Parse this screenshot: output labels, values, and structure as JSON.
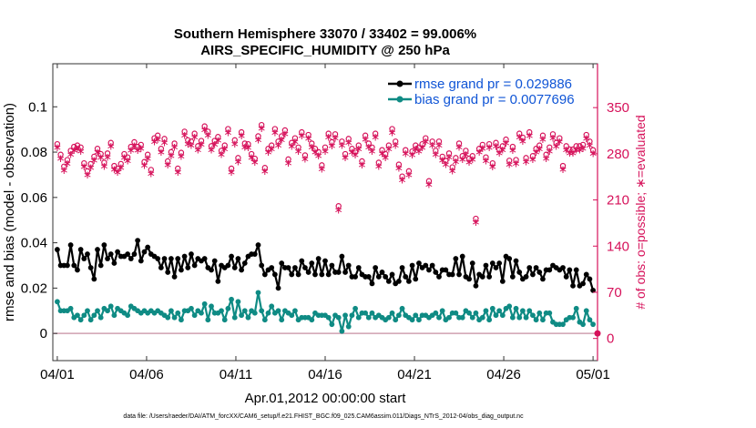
{
  "colors": {
    "rmse": "#000000",
    "bias": "#0f8b84",
    "obs": "#d6115a",
    "zero_line": "#cfa0b0",
    "legend_text": "#1055d6"
  },
  "chart_data": {
    "type": "line",
    "title_line1": "Southern Hemisphere 33070 / 33402 = 99.006%",
    "title_line2": "AIRS_SPECIFIC_HUMIDITY @ 250 hPa",
    "xlabel": "Apr.01,2012 00:00:00 start",
    "ylabel": "rmse and bias (model - observation)",
    "y2label": "# of obs: o=possible; ∗=evaluated",
    "footer": "data file: /Users/raeder/DAI/ATM_forcXX/CAM6_setup/f.e21.FHIST_BGC.f09_025.CAM6assim.011/Diags_NTrS_2012-04/obs_diag_output.nc",
    "x_ticks": [
      {
        "day": 0,
        "label": "04/01"
      },
      {
        "day": 5,
        "label": "04/06"
      },
      {
        "day": 10,
        "label": "04/11"
      },
      {
        "day": 15,
        "label": "04/16"
      },
      {
        "day": 20,
        "label": "04/21"
      },
      {
        "day": 25,
        "label": "04/26"
      },
      {
        "day": 30,
        "label": "05/01"
      }
    ],
    "xlim": [
      -0.25,
      30.25
    ],
    "ylim": [
      -0.012,
      0.119
    ],
    "y_ticks": [
      {
        "value": 0,
        "label": "0"
      },
      {
        "value": 0.02,
        "label": "0.02"
      },
      {
        "value": 0.04,
        "label": "0.04"
      },
      {
        "value": 0.06,
        "label": "0.06"
      },
      {
        "value": 0.08,
        "label": "0.08"
      },
      {
        "value": 0.1,
        "label": "0.1"
      }
    ],
    "y2lim": [
      -33.6,
      416.5
    ],
    "y2_ticks": [
      {
        "value": 0,
        "label": "0"
      },
      {
        "value": 70,
        "label": "70"
      },
      {
        "value": 140,
        "label": "140"
      },
      {
        "value": 210,
        "label": "210"
      },
      {
        "value": 280,
        "label": "280"
      },
      {
        "value": 350,
        "label": "350"
      }
    ],
    "grid": false,
    "legend_position": "top-right",
    "series": [
      {
        "name": "rmse grand pr = 0.029886",
        "axis": "left",
        "values": [
          0.037,
          0.03,
          0.03,
          0.03,
          0.039,
          0.03,
          0.028,
          0.037,
          0.033,
          0.035,
          0.029,
          0.024,
          0.037,
          0.03,
          0.039,
          0.033,
          0.035,
          0.031,
          0.036,
          0.034,
          0.034,
          0.035,
          0.033,
          0.035,
          0.041,
          0.032,
          0.036,
          0.038,
          0.035,
          0.034,
          0.033,
          0.029,
          0.033,
          0.027,
          0.033,
          0.025,
          0.033,
          0.028,
          0.034,
          0.029,
          0.035,
          0.03,
          0.033,
          0.032,
          0.033,
          0.029,
          0.028,
          0.032,
          0.023,
          0.03,
          0.029,
          0.03,
          0.034,
          0.029,
          0.033,
          0.028,
          0.031,
          0.034,
          0.035,
          0.035,
          0.039,
          0.03,
          0.026,
          0.028,
          0.029,
          0.026,
          0.02,
          0.031,
          0.029,
          0.029,
          0.026,
          0.029,
          0.026,
          0.032,
          0.029,
          0.027,
          0.031,
          0.026,
          0.033,
          0.026,
          0.032,
          0.026,
          0.03,
          0.027,
          0.027,
          0.034,
          0.027,
          0.03,
          0.025,
          0.025,
          0.029,
          0.026,
          0.025,
          0.025,
          0.022,
          0.029,
          0.025,
          0.027,
          0.025,
          0.023,
          0.026,
          0.022,
          0.023,
          0.029,
          0.025,
          0.023,
          0.03,
          0.024,
          0.031,
          0.029,
          0.03,
          0.028,
          0.03,
          0.027,
          0.025,
          0.028,
          0.028,
          0.026,
          0.026,
          0.033,
          0.026,
          0.034,
          0.025,
          0.024,
          0.031,
          0.021,
          0.026,
          0.025,
          0.03,
          0.025,
          0.031,
          0.029,
          0.031,
          0.023,
          0.034,
          0.033,
          0.025,
          0.032,
          0.027,
          0.024,
          0.025,
          0.029,
          0.026,
          0.029,
          0.027,
          0.024,
          0.028,
          0.028,
          0.03,
          0.029,
          0.028,
          0.029,
          0.025,
          0.028,
          0.021,
          0.028,
          0.021,
          0.022,
          0.026,
          0.024,
          0.019
        ]
      },
      {
        "name": "bias grand pr = 0.0077696",
        "axis": "left",
        "values": [
          0.014,
          0.01,
          0.01,
          0.01,
          0.011,
          0.007,
          0.008,
          0.006,
          0.008,
          0.01,
          0.006,
          0.008,
          0.01,
          0.007,
          0.011,
          0.01,
          0.012,
          0.008,
          0.011,
          0.01,
          0.009,
          0.008,
          0.012,
          0.011,
          0.01,
          0.009,
          0.01,
          0.009,
          0.01,
          0.009,
          0.01,
          0.009,
          0.008,
          0.007,
          0.01,
          0.007,
          0.009,
          0.006,
          0.01,
          0.01,
          0.011,
          0.008,
          0.01,
          0.009,
          0.013,
          0.006,
          0.012,
          0.009,
          0.009,
          0.01,
          0.006,
          0.011,
          0.015,
          0.007,
          0.014,
          0.008,
          0.01,
          0.007,
          0.01,
          0.009,
          0.018,
          0.01,
          0.006,
          0.009,
          0.012,
          0.009,
          0.01,
          0.006,
          0.01,
          0.009,
          0.008,
          0.01,
          0.006,
          0.007,
          0.007,
          0.007,
          0.006,
          0.009,
          0.008,
          0.008,
          0.008,
          0.007,
          0.004,
          0.008,
          0.007,
          0.001,
          0.008,
          0.003,
          0.008,
          0.011,
          0.007,
          0.009,
          0.009,
          0.007,
          0.009,
          0.007,
          0.008,
          0.007,
          0.006,
          0.007,
          0.009,
          0.006,
          0.008,
          0.011,
          0.008,
          0.007,
          0.006,
          0.008,
          0.006,
          0.008,
          0.008,
          0.007,
          0.008,
          0.009,
          0.007,
          0.01,
          0.006,
          0.007,
          0.009,
          0.009,
          0.007,
          0.007,
          0.01,
          0.009,
          0.007,
          0.009,
          0.006,
          0.007,
          0.01,
          0.006,
          0.011,
          0.008,
          0.01,
          0.008,
          0.011,
          0.012,
          0.007,
          0.011,
          0.007,
          0.01,
          0.007,
          0.01,
          0.008,
          0.006,
          0.009,
          0.006,
          0.009,
          0.009,
          0.005,
          0.004,
          0.004,
          0.004,
          0.006,
          0.007,
          0.007,
          0.011,
          0.005,
          0.004,
          0.01,
          0.006,
          0.004
        ]
      }
    ],
    "obs_possible": [
      292,
      276,
      258,
      268,
      282,
      288,
      290,
      287,
      263,
      251,
      262,
      273,
      285,
      277,
      264,
      278,
      294,
      259,
      255,
      262,
      277,
      272,
      288,
      295,
      288,
      291,
      265,
      276,
      253,
      301,
      305,
      285,
      300,
      266,
      280,
      293,
      255,
      279,
      311,
      298,
      296,
      308,
      289,
      297,
      319,
      311,
      289,
      297,
      303,
      282,
      290,
      315,
      255,
      298,
      271,
      310,
      293,
      292,
      277,
      270,
      304,
      321,
      256,
      285,
      290,
      315,
      296,
      304,
      313,
      269,
      294,
      301,
      287,
      310,
      275,
      306,
      293,
      285,
      280,
      260,
      287,
      308,
      295,
      307,
      198,
      296,
      277,
      300,
      285,
      281,
      290,
      266,
      305,
      293,
      287,
      308,
      264,
      283,
      277,
      290,
      315,
      296,
      261,
      243,
      283,
      251,
      281,
      290,
      287,
      292,
      301,
      236,
      296,
      282,
      296,
      273,
      267,
      278,
      257,
      271,
      293,
      274,
      282,
      270,
      274,
      179,
      285,
      291,
      272,
      292,
      263,
      294,
      284,
      289,
      299,
      267,
      288,
      268,
      308,
      302,
      271,
      310,
      274,
      285,
      290,
      305,
      276,
      287,
      307,
      294,
      301,
      259,
      289,
      284,
      284,
      289,
      289,
      291,
      306,
      296,
      283
    ]
  }
}
